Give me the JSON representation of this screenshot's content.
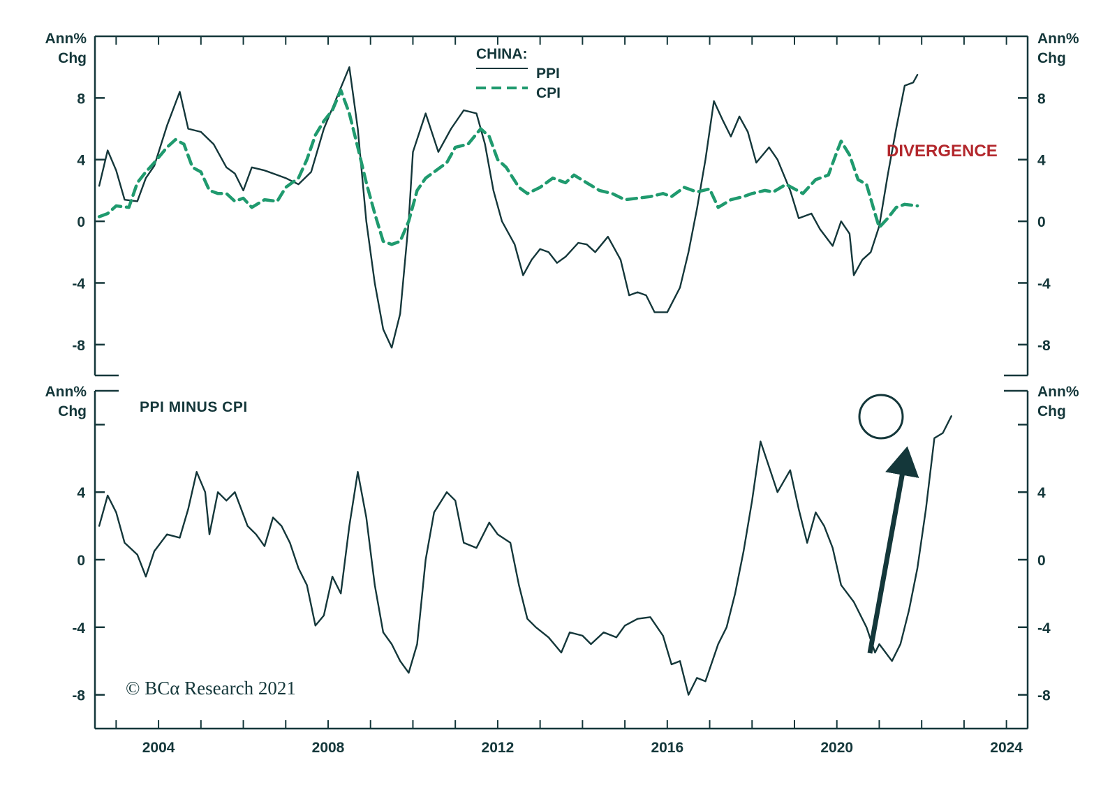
{
  "colors": {
    "ink": "#14373a",
    "cpi": "#1f9a6e",
    "divergence": "#b3282d"
  },
  "x_tick_labels": [
    "2004",
    "2008",
    "2012",
    "2016",
    "2020",
    "2024"
  ],
  "unit_label": {
    "line1": "Ann%",
    "line2": "Chg"
  },
  "copyright": "© BCα Research 2021",
  "chart_data": [
    {
      "type": "line",
      "panel": "top",
      "legend_title": "CHINA:",
      "annotation": "DIVERGENCE",
      "ylim": [
        -10,
        12
      ],
      "y_ticks": [
        -8,
        -4,
        0,
        4,
        8
      ],
      "xlim": [
        2002.5,
        2024.5
      ],
      "series": [
        {
          "name": "PPI",
          "style": "solid",
          "points": [
            [
              2002.6,
              2.3
            ],
            [
              2002.8,
              4.6
            ],
            [
              2003.0,
              3.3
            ],
            [
              2003.2,
              1.4
            ],
            [
              2003.5,
              1.3
            ],
            [
              2003.7,
              2.8
            ],
            [
              2003.9,
              3.6
            ],
            [
              2004.2,
              6.2
            ],
            [
              2004.5,
              8.4
            ],
            [
              2004.7,
              6.0
            ],
            [
              2005.0,
              5.8
            ],
            [
              2005.3,
              5.0
            ],
            [
              2005.6,
              3.5
            ],
            [
              2005.8,
              3.1
            ],
            [
              2006.0,
              2.0
            ],
            [
              2006.2,
              3.5
            ],
            [
              2006.5,
              3.3
            ],
            [
              2006.8,
              3.0
            ],
            [
              2007.0,
              2.8
            ],
            [
              2007.3,
              2.4
            ],
            [
              2007.6,
              3.2
            ],
            [
              2007.9,
              6.0
            ],
            [
              2008.2,
              8.0
            ],
            [
              2008.5,
              10.0
            ],
            [
              2008.7,
              6.0
            ],
            [
              2008.9,
              0.0
            ],
            [
              2009.1,
              -4.0
            ],
            [
              2009.3,
              -7.0
            ],
            [
              2009.5,
              -8.2
            ],
            [
              2009.7,
              -6.0
            ],
            [
              2009.9,
              0.0
            ],
            [
              2010.0,
              4.5
            ],
            [
              2010.3,
              7.0
            ],
            [
              2010.6,
              4.5
            ],
            [
              2010.9,
              6.0
            ],
            [
              2011.2,
              7.2
            ],
            [
              2011.5,
              7.0
            ],
            [
              2011.7,
              5.0
            ],
            [
              2011.9,
              2.0
            ],
            [
              2012.1,
              0.0
            ],
            [
              2012.4,
              -1.5
            ],
            [
              2012.6,
              -3.5
            ],
            [
              2012.8,
              -2.5
            ],
            [
              2013.0,
              -1.8
            ],
            [
              2013.2,
              -2.0
            ],
            [
              2013.4,
              -2.7
            ],
            [
              2013.6,
              -2.3
            ],
            [
              2013.9,
              -1.4
            ],
            [
              2014.1,
              -1.5
            ],
            [
              2014.3,
              -2.0
            ],
            [
              2014.6,
              -1.0
            ],
            [
              2014.9,
              -2.5
            ],
            [
              2015.1,
              -4.8
            ],
            [
              2015.3,
              -4.6
            ],
            [
              2015.5,
              -4.8
            ],
            [
              2015.7,
              -5.9
            ],
            [
              2016.0,
              -5.9
            ],
            [
              2016.3,
              -4.3
            ],
            [
              2016.5,
              -2.0
            ],
            [
              2016.7,
              0.8
            ],
            [
              2016.9,
              4.0
            ],
            [
              2017.1,
              7.8
            ],
            [
              2017.3,
              6.6
            ],
            [
              2017.5,
              5.5
            ],
            [
              2017.7,
              6.8
            ],
            [
              2017.9,
              5.8
            ],
            [
              2018.1,
              3.8
            ],
            [
              2018.4,
              4.8
            ],
            [
              2018.6,
              4.0
            ],
            [
              2018.9,
              2.0
            ],
            [
              2019.1,
              0.2
            ],
            [
              2019.4,
              0.5
            ],
            [
              2019.6,
              -0.5
            ],
            [
              2019.9,
              -1.6
            ],
            [
              2020.1,
              0.0
            ],
            [
              2020.3,
              -0.8
            ],
            [
              2020.4,
              -3.5
            ],
            [
              2020.6,
              -2.5
            ],
            [
              2020.8,
              -2.0
            ],
            [
              2021.0,
              -0.3
            ],
            [
              2021.2,
              3.0
            ],
            [
              2021.4,
              6.0
            ],
            [
              2021.6,
              8.8
            ],
            [
              2021.8,
              9.0
            ],
            [
              2021.9,
              9.5
            ]
          ]
        },
        {
          "name": "CPI",
          "style": "dashed",
          "points": [
            [
              2002.6,
              0.3
            ],
            [
              2002.8,
              0.5
            ],
            [
              2003.0,
              1.0
            ],
            [
              2003.3,
              0.9
            ],
            [
              2003.5,
              2.5
            ],
            [
              2003.7,
              3.2
            ],
            [
              2003.9,
              3.8
            ],
            [
              2004.2,
              4.8
            ],
            [
              2004.4,
              5.3
            ],
            [
              2004.6,
              5.0
            ],
            [
              2004.8,
              3.5
            ],
            [
              2005.0,
              3.2
            ],
            [
              2005.2,
              2.0
            ],
            [
              2005.4,
              1.8
            ],
            [
              2005.6,
              1.8
            ],
            [
              2005.8,
              1.3
            ],
            [
              2006.0,
              1.5
            ],
            [
              2006.2,
              0.9
            ],
            [
              2006.5,
              1.4
            ],
            [
              2006.8,
              1.3
            ],
            [
              2007.0,
              2.2
            ],
            [
              2007.3,
              2.8
            ],
            [
              2007.5,
              4.0
            ],
            [
              2007.7,
              5.6
            ],
            [
              2007.9,
              6.5
            ],
            [
              2008.1,
              7.2
            ],
            [
              2008.3,
              8.5
            ],
            [
              2008.5,
              7.0
            ],
            [
              2008.7,
              4.8
            ],
            [
              2008.9,
              2.5
            ],
            [
              2009.1,
              0.5
            ],
            [
              2009.3,
              -1.3
            ],
            [
              2009.5,
              -1.5
            ],
            [
              2009.7,
              -1.3
            ],
            [
              2009.9,
              0.0
            ],
            [
              2010.1,
              2.0
            ],
            [
              2010.3,
              2.8
            ],
            [
              2010.5,
              3.2
            ],
            [
              2010.8,
              3.8
            ],
            [
              2011.0,
              4.8
            ],
            [
              2011.3,
              5.0
            ],
            [
              2011.6,
              6.0
            ],
            [
              2011.8,
              5.5
            ],
            [
              2012.0,
              4.0
            ],
            [
              2012.2,
              3.5
            ],
            [
              2012.5,
              2.2
            ],
            [
              2012.7,
              1.8
            ],
            [
              2013.0,
              2.2
            ],
            [
              2013.3,
              2.8
            ],
            [
              2013.6,
              2.5
            ],
            [
              2013.8,
              3.0
            ],
            [
              2014.1,
              2.5
            ],
            [
              2014.4,
              2.0
            ],
            [
              2014.7,
              1.8
            ],
            [
              2015.0,
              1.4
            ],
            [
              2015.3,
              1.5
            ],
            [
              2015.6,
              1.6
            ],
            [
              2015.9,
              1.8
            ],
            [
              2016.1,
              1.6
            ],
            [
              2016.4,
              2.2
            ],
            [
              2016.7,
              1.9
            ],
            [
              2017.0,
              2.1
            ],
            [
              2017.2,
              0.9
            ],
            [
              2017.5,
              1.4
            ],
            [
              2017.8,
              1.6
            ],
            [
              2018.0,
              1.8
            ],
            [
              2018.3,
              2.0
            ],
            [
              2018.5,
              1.9
            ],
            [
              2018.8,
              2.4
            ],
            [
              2019.0,
              2.1
            ],
            [
              2019.2,
              1.8
            ],
            [
              2019.5,
              2.7
            ],
            [
              2019.8,
              3.0
            ],
            [
              2020.0,
              4.5
            ],
            [
              2020.1,
              5.2
            ],
            [
              2020.3,
              4.3
            ],
            [
              2020.5,
              2.7
            ],
            [
              2020.7,
              2.4
            ],
            [
              2020.9,
              0.5
            ],
            [
              2021.0,
              -0.4
            ],
            [
              2021.2,
              0.2
            ],
            [
              2021.4,
              0.9
            ],
            [
              2021.6,
              1.1
            ],
            [
              2021.9,
              1.0
            ]
          ]
        }
      ]
    },
    {
      "type": "line",
      "panel": "bottom",
      "title": "PPI MINUS CPI",
      "ylim": [
        -10,
        10
      ],
      "y_ticks": [
        -8,
        -4,
        0,
        4,
        8
      ],
      "y_tick_labels": [
        "-8",
        "-4",
        "0",
        "4",
        ""
      ],
      "xlim": [
        2002.5,
        2024.5
      ],
      "series": [
        {
          "name": "PPI minus CPI",
          "style": "solid",
          "points": [
            [
              2002.6,
              2.0
            ],
            [
              2002.8,
              3.8
            ],
            [
              2003.0,
              2.8
            ],
            [
              2003.2,
              1.0
            ],
            [
              2003.5,
              0.3
            ],
            [
              2003.7,
              -1.0
            ],
            [
              2003.9,
              0.5
            ],
            [
              2004.2,
              1.5
            ],
            [
              2004.5,
              1.3
            ],
            [
              2004.7,
              3.0
            ],
            [
              2004.9,
              5.2
            ],
            [
              2005.1,
              4.0
            ],
            [
              2005.2,
              1.5
            ],
            [
              2005.4,
              4.0
            ],
            [
              2005.6,
              3.5
            ],
            [
              2005.8,
              4.0
            ],
            [
              2006.1,
              2.0
            ],
            [
              2006.3,
              1.5
            ],
            [
              2006.5,
              0.8
            ],
            [
              2006.7,
              2.5
            ],
            [
              2006.9,
              2.0
            ],
            [
              2007.1,
              1.0
            ],
            [
              2007.3,
              -0.5
            ],
            [
              2007.5,
              -1.5
            ],
            [
              2007.7,
              -3.9
            ],
            [
              2007.9,
              -3.3
            ],
            [
              2008.1,
              -1.0
            ],
            [
              2008.3,
              -2.0
            ],
            [
              2008.5,
              2.0
            ],
            [
              2008.7,
              5.2
            ],
            [
              2008.9,
              2.5
            ],
            [
              2009.1,
              -1.5
            ],
            [
              2009.3,
              -4.3
            ],
            [
              2009.5,
              -5.0
            ],
            [
              2009.7,
              -6.0
            ],
            [
              2009.9,
              -6.7
            ],
            [
              2010.1,
              -5.0
            ],
            [
              2010.3,
              0.0
            ],
            [
              2010.5,
              2.8
            ],
            [
              2010.8,
              4.0
            ],
            [
              2011.0,
              3.5
            ],
            [
              2011.2,
              1.0
            ],
            [
              2011.5,
              0.7
            ],
            [
              2011.8,
              2.2
            ],
            [
              2012.0,
              1.5
            ],
            [
              2012.3,
              1.0
            ],
            [
              2012.5,
              -1.5
            ],
            [
              2012.7,
              -3.5
            ],
            [
              2012.9,
              -4.0
            ],
            [
              2013.2,
              -4.6
            ],
            [
              2013.5,
              -5.5
            ],
            [
              2013.7,
              -4.3
            ],
            [
              2014.0,
              -4.5
            ],
            [
              2014.2,
              -5.0
            ],
            [
              2014.5,
              -4.3
            ],
            [
              2014.8,
              -4.6
            ],
            [
              2015.0,
              -3.9
            ],
            [
              2015.3,
              -3.5
            ],
            [
              2015.6,
              -3.4
            ],
            [
              2015.9,
              -4.5
            ],
            [
              2016.1,
              -6.2
            ],
            [
              2016.3,
              -6.0
            ],
            [
              2016.5,
              -8.0
            ],
            [
              2016.7,
              -7.0
            ],
            [
              2016.9,
              -7.2
            ],
            [
              2017.2,
              -5.0
            ],
            [
              2017.4,
              -4.0
            ],
            [
              2017.6,
              -2.0
            ],
            [
              2017.8,
              0.5
            ],
            [
              2018.0,
              3.5
            ],
            [
              2018.2,
              7.0
            ],
            [
              2018.4,
              5.5
            ],
            [
              2018.6,
              4.0
            ],
            [
              2018.9,
              5.3
            ],
            [
              2019.1,
              3.0
            ],
            [
              2019.3,
              1.0
            ],
            [
              2019.5,
              2.8
            ],
            [
              2019.7,
              2.0
            ],
            [
              2019.9,
              0.7
            ],
            [
              2020.1,
              -1.5
            ],
            [
              2020.4,
              -2.5
            ],
            [
              2020.7,
              -4.0
            ],
            [
              2020.9,
              -5.5
            ],
            [
              2021.0,
              -5.0
            ],
            [
              2021.3,
              -6.0
            ],
            [
              2021.5,
              -5.0
            ],
            [
              2021.7,
              -3.0
            ],
            [
              2021.9,
              -0.5
            ],
            [
              2022.1,
              3.0
            ],
            [
              2022.3,
              7.2
            ],
            [
              2022.5,
              7.5
            ],
            [
              2022.7,
              8.5
            ]
          ]
        }
      ]
    }
  ]
}
